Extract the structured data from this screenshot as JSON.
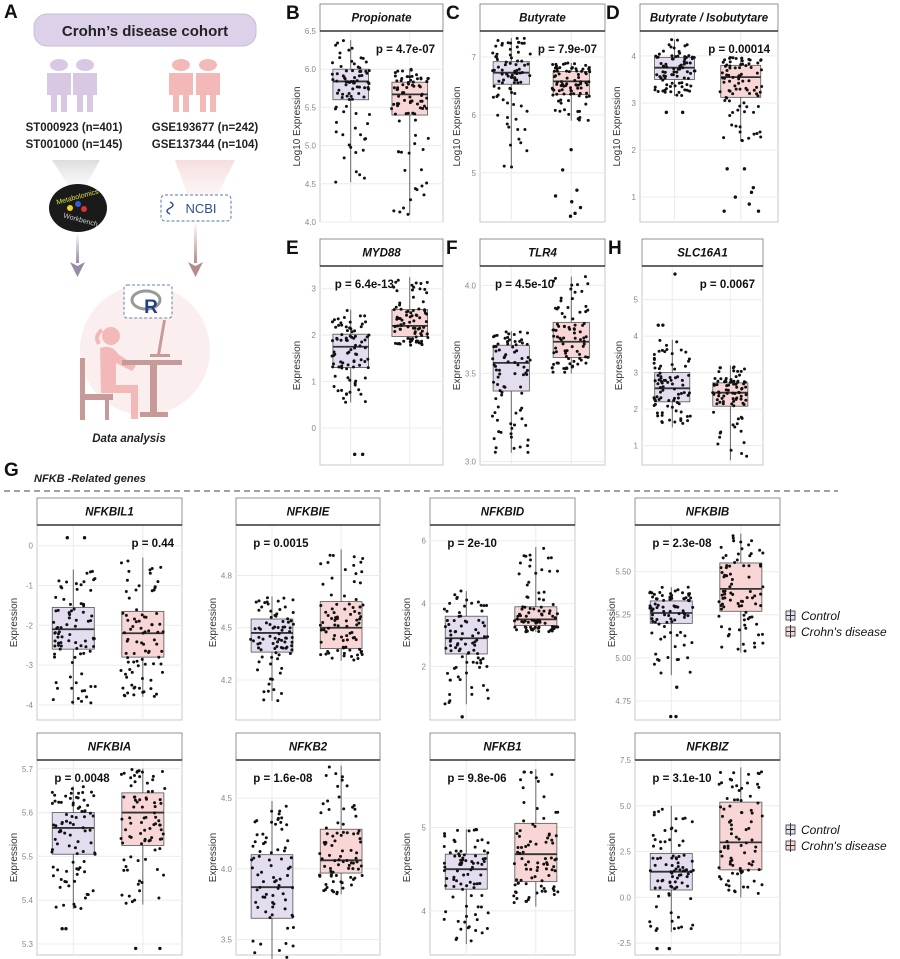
{
  "panel_a": {
    "letter": "A",
    "cohort_title": "Crohn’s disease cohort",
    "datasets_left": [
      "ST000923 (n=401)",
      "ST001000 (n=145)"
    ],
    "datasets_right": [
      "GSE193677 (n=242)",
      "GSE137344 (n=104)"
    ],
    "logo_left_top": "Metabolomics",
    "logo_left_bottom": "Workbench",
    "logo_right": "NCBI",
    "r_logo": "R",
    "caption": "Data analysis"
  },
  "panel_g": {
    "letter": "G",
    "heading": "NFKB -Related genes"
  },
  "legend": {
    "items": [
      "Control",
      "Crohn's disease"
    ]
  },
  "colors": {
    "control": "#e4dcef",
    "crohn": "#f9d6d6",
    "box_stroke": "#555555",
    "cohort_pill": "#ddd1e9",
    "person_control": "#d9c8e3",
    "person_crohn": "#f3b9b9"
  },
  "chart_data": [
    {
      "panel": "B",
      "type": "box",
      "title": "Propionate",
      "ylabel": "Log10 Expression",
      "p_value": "p = 4.7e-07",
      "ylim": [
        4.0,
        6.5
      ],
      "yticks": [
        [
          "4.0",
          4.0
        ],
        [
          "4.5",
          4.5
        ],
        [
          "5.0",
          5.0
        ],
        [
          "5.5",
          5.5
        ],
        [
          "6.0",
          6.0
        ],
        [
          "6.5",
          6.5
        ]
      ],
      "control": {
        "q1": 5.6,
        "median": 5.84,
        "q3": 6.0,
        "low": 4.52,
        "high": 6.38,
        "outliers": []
      },
      "crohn": {
        "q1": 5.4,
        "median": 5.67,
        "q3": 5.83,
        "low": 4.1,
        "high": 6.0,
        "outliers": []
      }
    },
    {
      "panel": "C",
      "type": "box",
      "title": "Butyrate",
      "ylabel": "Log10 Expression",
      "p_value": "p = 7.9e-07",
      "ylim": [
        4.15,
        7.45
      ],
      "yticks": [
        [
          "5",
          5
        ],
        [
          "6",
          6
        ],
        [
          "7",
          7
        ]
      ],
      "control": {
        "q1": 6.53,
        "median": 6.73,
        "q3": 6.92,
        "low": 5.1,
        "high": 7.33,
        "outliers": []
      },
      "crohn": {
        "q1": 6.35,
        "median": 6.58,
        "q3": 6.75,
        "low": 5.9,
        "high": 6.9,
        "outliers": [
          5.4,
          5.05,
          4.7,
          4.6,
          4.5,
          4.4,
          4.3,
          4.25
        ]
      }
    },
    {
      "panel": "D",
      "type": "box",
      "title": "Butyrate / Isobutytare",
      "ylabel": "Log10 Expression",
      "p_value": "p = 0.00014",
      "ylim": [
        0.47,
        4.53
      ],
      "yticks": [
        [
          "1",
          1
        ],
        [
          "2",
          2
        ],
        [
          "3",
          3
        ],
        [
          "4",
          4
        ]
      ],
      "control": {
        "q1": 3.5,
        "median": 3.75,
        "q3": 3.97,
        "low": 3.15,
        "high": 4.35,
        "outliers": [
          2.8,
          2.8
        ]
      },
      "crohn": {
        "q1": 3.12,
        "median": 3.55,
        "q3": 3.8,
        "low": 2.2,
        "high": 3.97,
        "outliers": [
          1.6,
          1.6,
          1.2,
          1.1,
          1.0,
          0.85,
          0.7,
          0.7
        ]
      }
    },
    {
      "panel": "E",
      "type": "box",
      "title": "MYD88",
      "ylabel": "Expression",
      "p_value": "p = 6.4e-13",
      "ylim": [
        -0.8,
        3.49
      ],
      "yticks": [
        [
          "0",
          0
        ],
        [
          "1",
          1
        ],
        [
          "2",
          2
        ],
        [
          "3",
          3
        ]
      ],
      "control": {
        "q1": 1.3,
        "median": 1.75,
        "q3": 2.02,
        "low": 0.55,
        "high": 2.55,
        "outliers": [
          -0.57,
          -0.57
        ]
      },
      "crohn": {
        "q1": 1.97,
        "median": 2.2,
        "q3": 2.55,
        "low": 1.78,
        "high": 3.25,
        "outliers": []
      }
    },
    {
      "panel": "F",
      "type": "box",
      "title": "TLR4",
      "ylabel": "Expression",
      "p_value": "p = 4.5e-10",
      "ylim": [
        2.98,
        4.11
      ],
      "yticks": [
        [
          "3.0",
          3.0
        ],
        [
          "3.5",
          3.5
        ],
        [
          "4.0",
          4.0
        ]
      ],
      "control": {
        "q1": 3.4,
        "median": 3.56,
        "q3": 3.66,
        "low": 3.05,
        "high": 3.74,
        "outliers": []
      },
      "crohn": {
        "q1": 3.59,
        "median": 3.68,
        "q3": 3.79,
        "low": 3.5,
        "high": 4.05,
        "outliers": []
      }
    },
    {
      "panel": "H",
      "type": "box",
      "title": "SLC16A1",
      "ylabel": "Expression",
      "p_value": "p = 0.0067",
      "ylim": [
        0.47,
        5.92
      ],
      "yticks": [
        [
          "1",
          1
        ],
        [
          "2",
          2
        ],
        [
          "3",
          3
        ],
        [
          "4",
          4
        ],
        [
          "5",
          5
        ]
      ],
      "control": {
        "q1": 2.2,
        "median": 2.57,
        "q3": 3.0,
        "low": 1.5,
        "high": 3.9,
        "outliers": [
          4.3,
          4.3,
          5.7
        ]
      },
      "crohn": {
        "q1": 2.08,
        "median": 2.45,
        "q3": 2.72,
        "low": 0.6,
        "high": 3.2,
        "outliers": []
      }
    },
    {
      "panel": "G",
      "type": "box",
      "title": "NFKBIL1",
      "ylabel": "Expression",
      "p_value": "p = 0.44",
      "ylim": [
        -4.38,
        0.52
      ],
      "yticks": [
        [
          "-4",
          -4
        ],
        [
          "-3",
          -3
        ],
        [
          "-2",
          -2
        ],
        [
          "-1",
          -1
        ],
        [
          "0",
          0
        ]
      ],
      "control": {
        "q1": -2.6,
        "median": -2.1,
        "q3": -1.55,
        "low": -4.0,
        "high": -0.6,
        "outliers": [
          0.2,
          0.2
        ]
      },
      "crohn": {
        "q1": -2.8,
        "median": -2.2,
        "q3": -1.65,
        "low": -3.8,
        "high": -0.3,
        "outliers": []
      }
    },
    {
      "panel": "G",
      "type": "box",
      "title": "NFKBIE",
      "ylabel": "Expression",
      "p_value": "p = 0.0015",
      "ylim": [
        3.97,
        5.09
      ],
      "yticks": [
        [
          "4.2",
          4.2
        ],
        [
          "4.5",
          4.5
        ],
        [
          "4.8",
          4.8
        ]
      ],
      "control": {
        "q1": 4.36,
        "median": 4.47,
        "q3": 4.55,
        "low": 4.08,
        "high": 4.68,
        "outliers": []
      },
      "crohn": {
        "q1": 4.38,
        "median": 4.5,
        "q3": 4.65,
        "low": 4.31,
        "high": 4.95,
        "outliers": []
      }
    },
    {
      "panel": "G",
      "type": "box",
      "title": "NFKBID",
      "ylabel": "Expression",
      "p_value": "p = 2e-10",
      "ylim": [
        0.3,
        6.5
      ],
      "yticks": [
        [
          "2",
          2
        ],
        [
          "4",
          4
        ],
        [
          "6",
          6
        ]
      ],
      "control": {
        "q1": 2.4,
        "median": 2.9,
        "q3": 3.6,
        "low": 0.8,
        "high": 4.4,
        "outliers": [
          0.4
        ]
      },
      "crohn": {
        "q1": 3.3,
        "median": 3.5,
        "q3": 3.9,
        "low": 3.1,
        "high": 5.8,
        "outliers": []
      }
    },
    {
      "panel": "G",
      "type": "box",
      "title": "NFKBIB",
      "ylabel": "Expression",
      "p_value": "p = 2.3e-08",
      "ylim": [
        4.64,
        5.77
      ],
      "yticks": [
        [
          "4.75",
          4.75
        ],
        [
          "5.00",
          5.0
        ],
        [
          "5.25",
          5.25
        ],
        [
          "5.50",
          5.5
        ]
      ],
      "control": {
        "q1": 5.2,
        "median": 5.26,
        "q3": 5.33,
        "low": 4.9,
        "high": 5.41,
        "outliers": [
          4.83,
          4.66,
          4.66
        ]
      },
      "crohn": {
        "q1": 5.27,
        "median": 5.4,
        "q3": 5.55,
        "low": 5.03,
        "high": 5.72,
        "outliers": []
      }
    },
    {
      "panel": "G",
      "type": "box",
      "title": "NFKBIA",
      "ylabel": "Expression",
      "p_value": "p = 0.0048",
      "ylim": [
        5.275,
        5.72
      ],
      "yticks": [
        [
          "5.3",
          5.3
        ],
        [
          "5.4",
          5.4
        ],
        [
          "5.5",
          5.5
        ],
        [
          "5.6",
          5.6
        ],
        [
          "5.7",
          5.7
        ]
      ],
      "control": {
        "q1": 5.505,
        "median": 5.565,
        "q3": 5.6,
        "low": 5.38,
        "high": 5.66,
        "outliers": [
          5.335,
          5.335
        ]
      },
      "crohn": {
        "q1": 5.525,
        "median": 5.6,
        "q3": 5.645,
        "low": 5.39,
        "high": 5.7,
        "outliers": [
          5.29,
          5.29
        ]
      }
    },
    {
      "panel": "G",
      "type": "box",
      "title": "NFKB2",
      "ylabel": "Expression",
      "p_value": "p = 1.6e-08",
      "ylim": [
        3.39,
        4.77
      ],
      "yticks": [
        [
          "3.5",
          3.5
        ],
        [
          "4.0",
          4.0
        ],
        [
          "4.5",
          4.5
        ]
      ],
      "control": {
        "q1": 3.65,
        "median": 3.87,
        "q3": 4.1,
        "low": 3.1,
        "high": 4.48,
        "outliers": []
      },
      "crohn": {
        "q1": 3.97,
        "median": 4.06,
        "q3": 4.28,
        "low": 3.82,
        "high": 4.73,
        "outliers": []
      }
    },
    {
      "panel": "G",
      "type": "box",
      "title": "NFKB1",
      "ylabel": "Expression",
      "p_value": "p = 9.8e-06",
      "ylim": [
        3.47,
        5.81
      ],
      "yticks": [
        [
          "4",
          4
        ],
        [
          "5",
          5
        ]
      ],
      "control": {
        "q1": 4.26,
        "median": 4.5,
        "q3": 4.68,
        "low": 3.6,
        "high": 4.98,
        "outliers": [
          3.3,
          3.3
        ]
      },
      "crohn": {
        "q1": 4.35,
        "median": 4.68,
        "q3": 5.05,
        "low": 4.05,
        "high": 5.7,
        "outliers": []
      }
    },
    {
      "panel": "G",
      "type": "box",
      "title": "NFKBIZ",
      "ylabel": "Expression",
      "p_value": "p = 3.1e-10",
      "ylim": [
        -3.15,
        7.5
      ],
      "yticks": [
        [
          "-2.5",
          -2.5
        ],
        [
          "0.0",
          0.0
        ],
        [
          "2.5",
          2.5
        ],
        [
          "5.0",
          5.0
        ],
        [
          "7.5",
          7.5
        ]
      ],
      "control": {
        "q1": 0.4,
        "median": 1.4,
        "q3": 2.4,
        "low": -1.9,
        "high": 5.0,
        "outliers": [
          -2.8,
          -2.8
        ]
      },
      "crohn": {
        "q1": 1.5,
        "median": 3.0,
        "q3": 5.2,
        "low": 0.0,
        "high": 7.1,
        "outliers": []
      }
    }
  ]
}
